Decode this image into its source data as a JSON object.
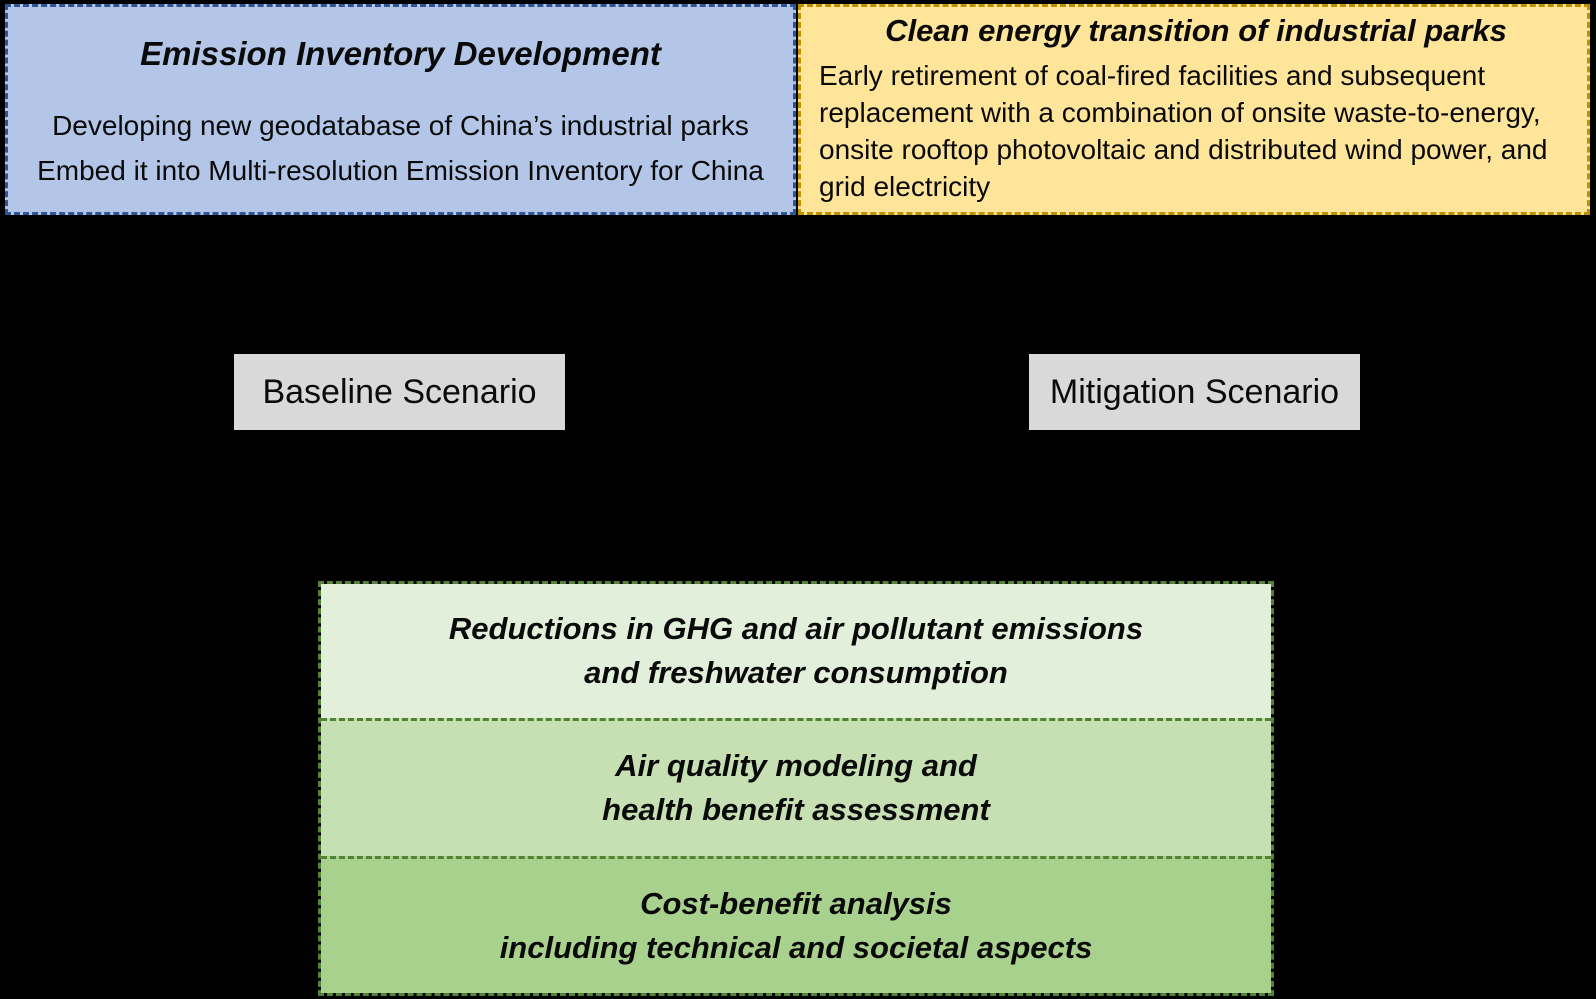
{
  "diagram": {
    "background": "#000000",
    "text_color": "#0a0a0a"
  },
  "top_row": {
    "inventory_box": {
      "title": "Emission Inventory Development",
      "lines": [
        "Developing new geodatabase of China’s industrial parks",
        "Embed it into Multi-resolution Emission Inventory for China"
      ],
      "fill": "#b4c6e7",
      "border": "#2f5597"
    },
    "transition_box": {
      "title": "Clean energy transition of industrial parks",
      "body": "Early retirement of coal-fired facilities and subsequent replacement with a combination of onsite waste-to-energy, onsite rooftop photovoltaic and distributed wind power, and grid electricity",
      "fill": "#ffe599",
      "border": "#bf9000"
    }
  },
  "scenarios": {
    "baseline": {
      "label": "Baseline Scenario",
      "fill": "#d9d9d9"
    },
    "mitigation": {
      "label": "Mitigation Scenario",
      "fill": "#d9d9d9"
    }
  },
  "outcomes": {
    "border": "#538135",
    "sections": [
      {
        "line1": "Reductions in GHG and air pollutant emissions",
        "line2": "and freshwater consumption",
        "fill": "#e2efda"
      },
      {
        "line1": "Air quality modeling and",
        "line2": "health benefit assessment",
        "fill": "#c6e0b4"
      },
      {
        "line1": "Cost-benefit analysis",
        "line2": "including technical and societal aspects",
        "fill": "#a9d18e"
      }
    ]
  }
}
